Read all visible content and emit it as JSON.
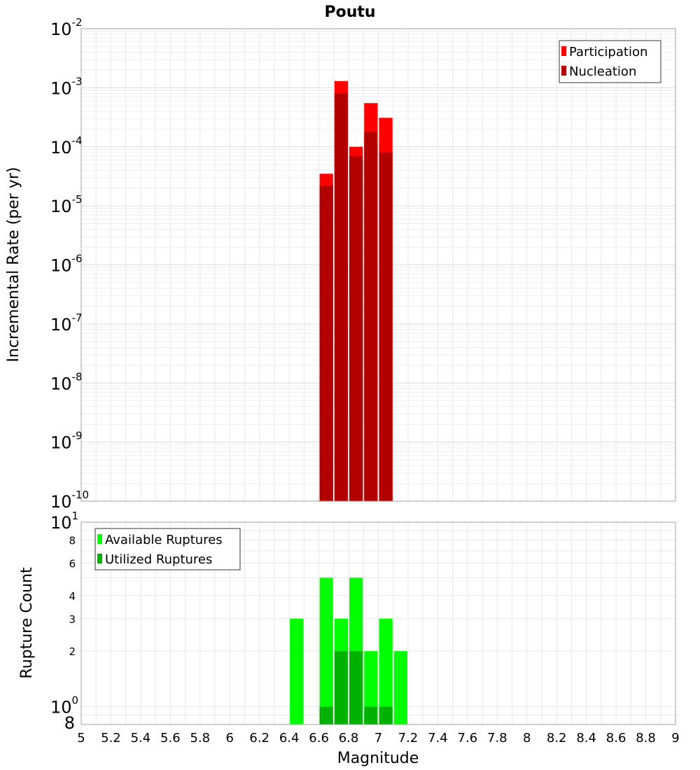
{
  "chart_data": [
    {
      "type": "bar",
      "title": "Poutu",
      "xlabel": "",
      "ylabel": "Incremental Rate (per yr)",
      "yscale": "log",
      "xlim": [
        5,
        9
      ],
      "ylim": [
        1e-10,
        0.01
      ],
      "y_ticks": [
        {
          "base": "10",
          "exp": "-10",
          "value": 1e-10
        },
        {
          "base": "10",
          "exp": "-9",
          "value": 1e-09
        },
        {
          "base": "10",
          "exp": "-8",
          "value": 1e-08
        },
        {
          "base": "10",
          "exp": "-7",
          "value": 1e-07
        },
        {
          "base": "10",
          "exp": "-6",
          "value": 1e-06
        },
        {
          "base": "10",
          "exp": "-5",
          "value": 1e-05
        },
        {
          "base": "10",
          "exp": "-4",
          "value": 0.0001
        },
        {
          "base": "10",
          "exp": "-3",
          "value": 0.001
        },
        {
          "base": "10",
          "exp": "-2",
          "value": 0.01
        }
      ],
      "grid": true,
      "legend_position": "top-right",
      "bar_width": 0.1,
      "series": [
        {
          "name": "Participation",
          "color": "#ff0000",
          "x": [
            6.65,
            6.75,
            6.85,
            6.95,
            7.05
          ],
          "values": [
            3.5e-05,
            0.0013,
            0.0001,
            0.00055,
            0.00031
          ]
        },
        {
          "name": "Nucleation",
          "color": "#b20000",
          "x": [
            6.65,
            6.75,
            6.85,
            6.95,
            7.05
          ],
          "values": [
            2.2e-05,
            0.0008,
            7e-05,
            0.00018,
            8e-05
          ]
        }
      ]
    },
    {
      "type": "bar",
      "title": "",
      "xlabel": "Magnitude",
      "ylabel": "Rupture Count",
      "yscale": "log",
      "xlim": [
        5,
        9
      ],
      "ylim": [
        0.8,
        10
      ],
      "x_ticks": [
        "5",
        "5.2",
        "5.4",
        "5.6",
        "5.8",
        "6",
        "6.2",
        "6.4",
        "6.6",
        "6.8",
        "7",
        "7.2",
        "7.4",
        "7.6",
        "7.8",
        "8",
        "8.2",
        "8.4",
        "8.6",
        "8.8",
        "9"
      ],
      "y_major_ticks": [
        {
          "base": "10",
          "exp": "0",
          "value": 1
        },
        {
          "base": "10",
          "exp": "1",
          "value": 10
        }
      ],
      "y_minor_ticks": [
        {
          "label": "8",
          "value": 0.8
        },
        {
          "label": "2",
          "value": 2
        },
        {
          "label": "3",
          "value": 3
        },
        {
          "label": "4",
          "value": 4
        },
        {
          "label": "6",
          "value": 6
        },
        {
          "label": "8",
          "value": 8
        }
      ],
      "grid": true,
      "legend_position": "top-left",
      "bar_width": 0.1,
      "series": [
        {
          "name": "Available Ruptures",
          "color": "#00ff00",
          "x": [
            6.45,
            6.65,
            6.75,
            6.85,
            6.95,
            7.05,
            7.15
          ],
          "values": [
            3,
            5,
            3,
            5,
            2,
            3,
            2
          ]
        },
        {
          "name": "Utilized Ruptures",
          "color": "#00b200",
          "x": [
            6.65,
            6.75,
            6.85,
            6.95,
            7.05
          ],
          "values": [
            1,
            2,
            2,
            1,
            1
          ]
        }
      ]
    }
  ]
}
